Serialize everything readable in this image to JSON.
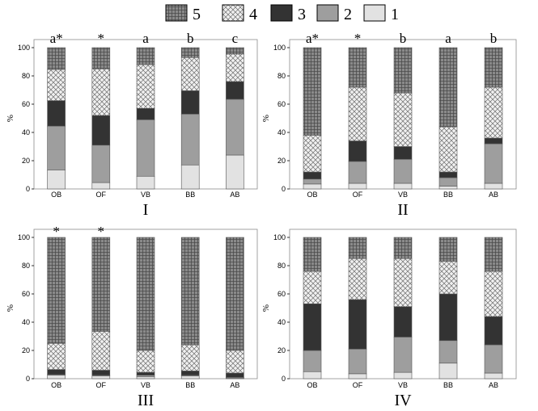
{
  "legend": {
    "entries": [
      {
        "key": "5",
        "label": "5",
        "pattern": "grid"
      },
      {
        "key": "4",
        "label": "4",
        "pattern": "cross"
      },
      {
        "key": "3",
        "label": "3",
        "pattern": "dark"
      },
      {
        "key": "2",
        "label": "2",
        "pattern": "mid"
      },
      {
        "key": "1",
        "label": "1",
        "pattern": "light"
      }
    ],
    "placement": "top-center"
  },
  "colors": {
    "level1": "#e2e2e2",
    "level2": "#9e9e9e",
    "level3": "#333333",
    "level4_bg": "#f0f0f0",
    "level4_lines": "#6e6e6e",
    "level5_bg": "#8a8a8a",
    "level5_lines": "#4a4a4a"
  },
  "chart_data": [
    {
      "type": "bar",
      "stacked": true,
      "panel_label": "I",
      "ylabel": "%",
      "ylim": [
        0,
        100
      ],
      "yticks": [
        0,
        20,
        40,
        60,
        80,
        100
      ],
      "categories": [
        "OB",
        "OF",
        "VB",
        "BB",
        "AB"
      ],
      "annotations": [
        "a*",
        "*",
        "a",
        "b",
        "c"
      ],
      "series": [
        {
          "name": "1",
          "values": [
            13.5,
            4.5,
            9,
            17,
            24
          ]
        },
        {
          "name": "2",
          "values": [
            31,
            26.5,
            40,
            36,
            39.5
          ]
        },
        {
          "name": "3",
          "values": [
            18,
            21,
            8,
            16.5,
            12.5
          ]
        },
        {
          "name": "4",
          "values": [
            22,
            33,
            31,
            23.5,
            19.5
          ]
        },
        {
          "name": "5",
          "values": [
            15.5,
            15,
            12,
            7,
            4.5
          ]
        }
      ]
    },
    {
      "type": "bar",
      "stacked": true,
      "panel_label": "II",
      "ylabel": "%",
      "ylim": [
        0,
        100
      ],
      "yticks": [
        0,
        20,
        40,
        60,
        80,
        100
      ],
      "categories": [
        "OB",
        "OF",
        "VB",
        "BB",
        "AB"
      ],
      "annotations": [
        "a*",
        "*",
        "b",
        "a",
        "b"
      ],
      "series": [
        {
          "name": "1",
          "values": [
            3.5,
            4,
            4,
            2,
            4
          ]
        },
        {
          "name": "2",
          "values": [
            3.5,
            15.5,
            17,
            6,
            28
          ]
        },
        {
          "name": "3",
          "values": [
            5,
            14.5,
            9,
            4,
            4
          ]
        },
        {
          "name": "4",
          "values": [
            26,
            38,
            38,
            32,
            36
          ]
        },
        {
          "name": "5",
          "values": [
            62,
            28,
            32,
            56,
            28
          ]
        }
      ]
    },
    {
      "type": "bar",
      "stacked": true,
      "panel_label": "III",
      "ylabel": "%",
      "ylim": [
        0,
        100
      ],
      "yticks": [
        0,
        20,
        40,
        60,
        80,
        100
      ],
      "categories": [
        "OB",
        "OF",
        "VB",
        "BB",
        "AB"
      ],
      "annotations": [
        "*",
        "*",
        "",
        "",
        ""
      ],
      "series": [
        {
          "name": "1",
          "values": [
            2.5,
            2,
            1.5,
            2,
            0.5
          ]
        },
        {
          "name": "2",
          "values": [
            0.5,
            0.5,
            1,
            0.5,
            0.5
          ]
        },
        {
          "name": "3",
          "values": [
            3.5,
            3.5,
            2,
            3,
            3
          ]
        },
        {
          "name": "4",
          "values": [
            18.5,
            27.5,
            15.5,
            18.5,
            16
          ]
        },
        {
          "name": "5",
          "values": [
            75,
            66.5,
            80,
            76,
            80
          ]
        }
      ]
    },
    {
      "type": "bar",
      "stacked": true,
      "panel_label": "IV",
      "ylabel": "%",
      "ylim": [
        0,
        100
      ],
      "yticks": [
        0,
        20,
        40,
        60,
        80,
        100
      ],
      "categories": [
        "OB",
        "OF",
        "VB",
        "BB",
        "AB"
      ],
      "annotations": [
        "",
        "",
        "",
        "",
        ""
      ],
      "series": [
        {
          "name": "1",
          "values": [
            5,
            3.5,
            4.5,
            11,
            4
          ]
        },
        {
          "name": "2",
          "values": [
            15,
            17.5,
            25,
            16,
            20
          ]
        },
        {
          "name": "3",
          "values": [
            33,
            35,
            21.5,
            33,
            20
          ]
        },
        {
          "name": "4",
          "values": [
            23,
            29,
            34,
            23,
            32
          ]
        },
        {
          "name": "5",
          "values": [
            24,
            15,
            15,
            17,
            24
          ]
        }
      ]
    }
  ]
}
